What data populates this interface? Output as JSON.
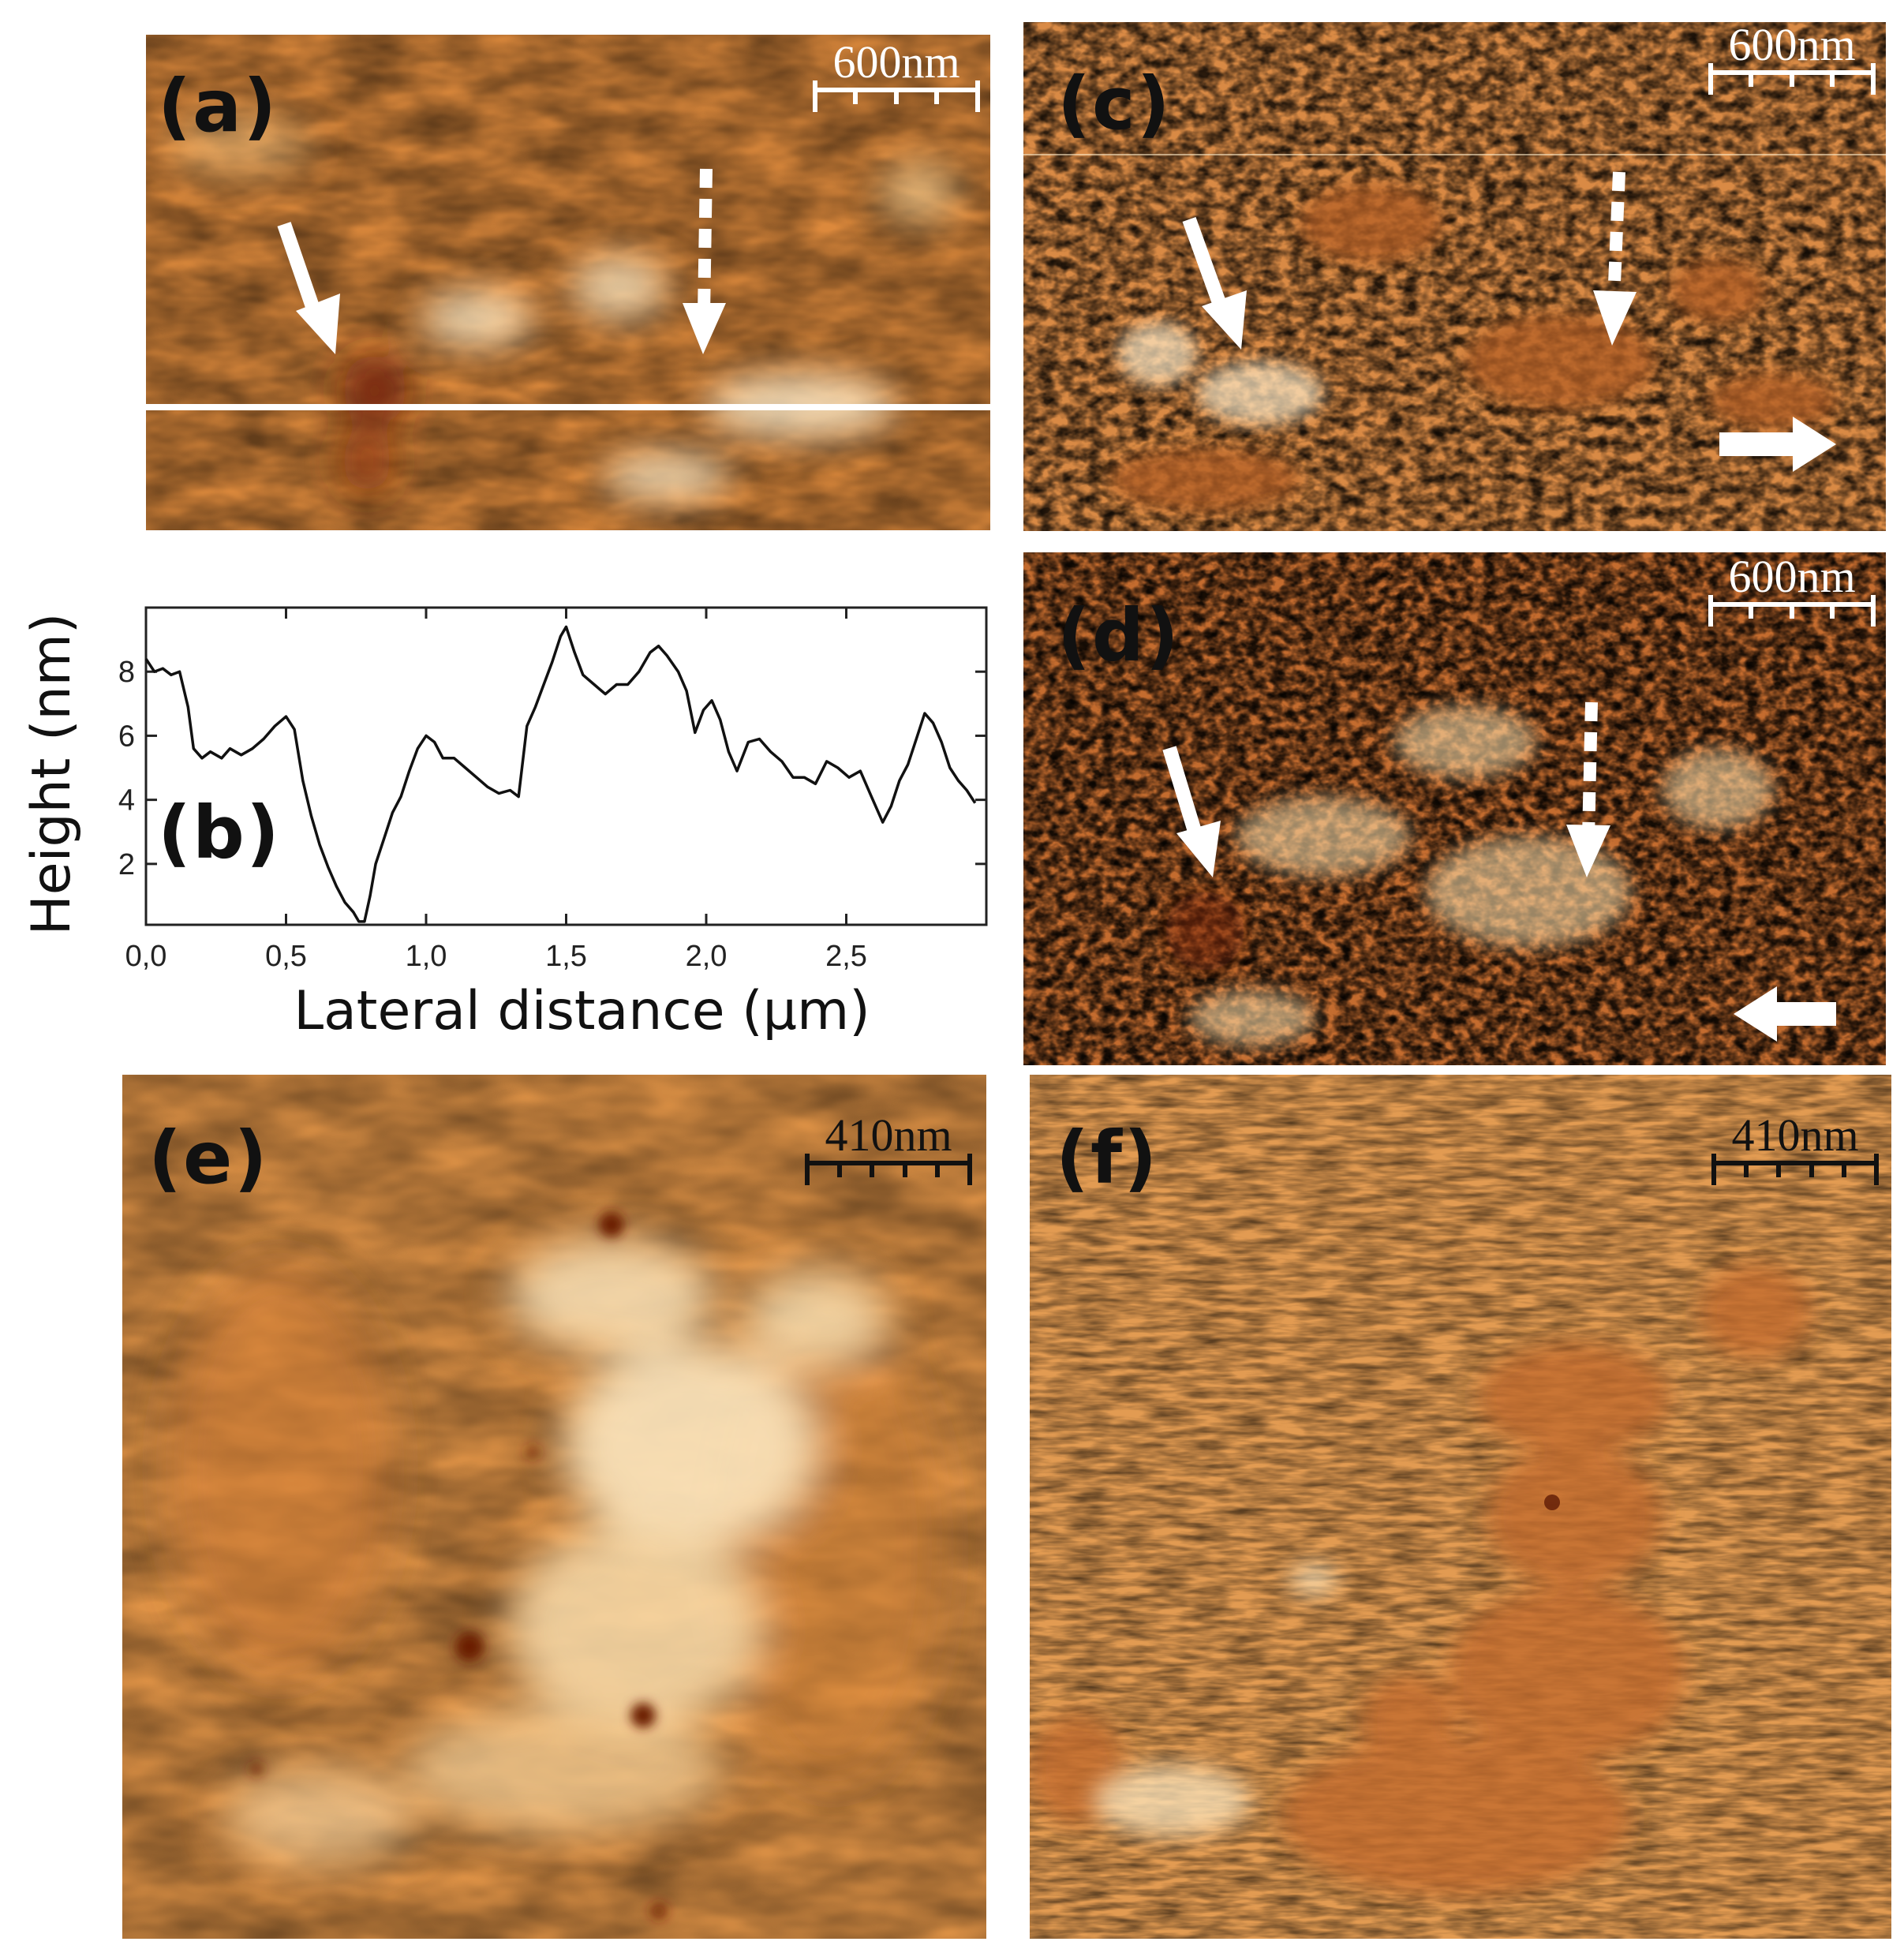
{
  "panels": {
    "a": {
      "label": "(a)",
      "scale_bar": "600nm"
    },
    "b": {
      "label": "(b)"
    },
    "c": {
      "label": "(c)",
      "scale_bar": "600nm"
    },
    "d": {
      "label": "(d)",
      "scale_bar": "600nm"
    },
    "e": {
      "label": "(e)",
      "scale_bar": "410nm"
    },
    "f": {
      "label": "(f)",
      "scale_bar": "410nm"
    }
  },
  "colors": {
    "afm_bright": "#fbe6bf",
    "afm_mid": "#dd8a3c",
    "afm_dark": "#6b1e06"
  },
  "chart_data": {
    "type": "line",
    "title": "",
    "xlabel": "Lateral distance (μm)",
    "ylabel": "Height (nm)",
    "xlim": [
      0,
      3.0
    ],
    "ylim": [
      0.1,
      10
    ],
    "xticks": [
      "0,0",
      "0,5",
      "1,0",
      "1,5",
      "2,0",
      "2,5"
    ],
    "xtick_values": [
      0,
      0.5,
      1.0,
      1.5,
      2.0,
      2.5
    ],
    "yticks": [
      "2",
      "4",
      "6",
      "8"
    ],
    "ytick_values": [
      2,
      4,
      6,
      8
    ],
    "grid": false,
    "series": [
      {
        "x": [
          0,
          0.03,
          0.06,
          0.09,
          0.12,
          0.15,
          0.17,
          0.2,
          0.23,
          0.27,
          0.3,
          0.34,
          0.38,
          0.42,
          0.46,
          0.5,
          0.53,
          0.56,
          0.59,
          0.62,
          0.65,
          0.68,
          0.71,
          0.74,
          0.76,
          0.78,
          0.8,
          0.82,
          0.85,
          0.88,
          0.91,
          0.94,
          0.97,
          1.0,
          1.03,
          1.06,
          1.1,
          1.14,
          1.18,
          1.22,
          1.26,
          1.3,
          1.33,
          1.36,
          1.39,
          1.42,
          1.45,
          1.48,
          1.5,
          1.53,
          1.56,
          1.6,
          1.64,
          1.68,
          1.72,
          1.76,
          1.8,
          1.83,
          1.86,
          1.9,
          1.93,
          1.96,
          1.99,
          2.02,
          2.05,
          2.08,
          2.11,
          2.15,
          2.19,
          2.23,
          2.27,
          2.31,
          2.35,
          2.39,
          2.43,
          2.47,
          2.51,
          2.55,
          2.59,
          2.63,
          2.66,
          2.69,
          2.72,
          2.75,
          2.78,
          2.81,
          2.84,
          2.87,
          2.9,
          2.93,
          2.96
        ],
        "y": [
          8.4,
          8.0,
          8.1,
          7.9,
          8.0,
          6.9,
          5.6,
          5.3,
          5.5,
          5.3,
          5.6,
          5.4,
          5.6,
          5.9,
          6.3,
          6.6,
          6.2,
          4.6,
          3.5,
          2.6,
          1.9,
          1.3,
          0.8,
          0.5,
          0.2,
          0.2,
          1.0,
          2.0,
          2.8,
          3.6,
          4.1,
          4.9,
          5.6,
          6.0,
          5.8,
          5.3,
          5.3,
          5.0,
          4.7,
          4.4,
          4.2,
          4.3,
          4.1,
          6.3,
          6.9,
          7.6,
          8.3,
          9.1,
          9.4,
          8.6,
          7.9,
          7.6,
          7.3,
          7.6,
          7.6,
          8.0,
          8.6,
          8.8,
          8.5,
          8.0,
          7.4,
          6.1,
          6.8,
          7.1,
          6.5,
          5.5,
          4.9,
          5.8,
          5.9,
          5.5,
          5.2,
          4.7,
          4.7,
          4.5,
          5.2,
          5.0,
          4.7,
          4.9,
          4.1,
          3.3,
          3.8,
          4.6,
          5.1,
          5.9,
          6.7,
          6.4,
          5.8,
          5.0,
          4.6,
          4.3,
          3.9
        ]
      }
    ]
  }
}
